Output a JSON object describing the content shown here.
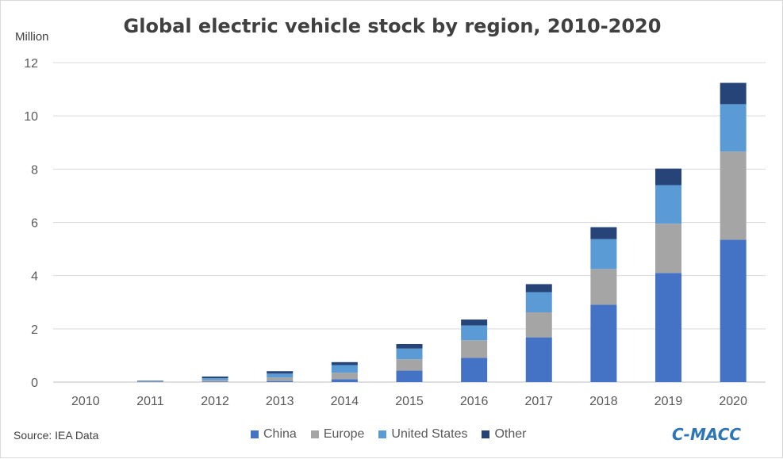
{
  "chart_data": {
    "type": "bar",
    "stacked": true,
    "title": "Global electric vehicle stock by region, 2010-2020",
    "ylabel": "Million",
    "xlabel": "",
    "ylim": [
      0,
      12
    ],
    "yticks": [
      0,
      2,
      4,
      6,
      8,
      10,
      12
    ],
    "grid": true,
    "legend_position": "bottom",
    "categories": [
      "2010",
      "2011",
      "2012",
      "2013",
      "2014",
      "2015",
      "2016",
      "2017",
      "2018",
      "2019",
      "2020"
    ],
    "series": [
      {
        "name": "China",
        "color": "#4472c4",
        "values": [
          0.0,
          0.01,
          0.02,
          0.04,
          0.11,
          0.43,
          0.91,
          1.68,
          2.91,
          4.1,
          5.35
        ]
      },
      {
        "name": "Europe",
        "color": "#a5a5a5",
        "values": [
          0.0,
          0.02,
          0.06,
          0.13,
          0.24,
          0.43,
          0.66,
          0.94,
          1.34,
          1.85,
          3.31
        ]
      },
      {
        "name": "United States",
        "color": "#5b9bd5",
        "values": [
          0.0,
          0.02,
          0.07,
          0.15,
          0.29,
          0.4,
          0.56,
          0.76,
          1.12,
          1.45,
          1.78
        ]
      },
      {
        "name": "Other",
        "color": "#264478",
        "values": [
          0.0,
          0.01,
          0.06,
          0.09,
          0.11,
          0.17,
          0.22,
          0.3,
          0.45,
          0.62,
          0.8
        ]
      }
    ]
  },
  "footer": {
    "source": "Source: IEA Data",
    "brand": "C-MACC"
  }
}
